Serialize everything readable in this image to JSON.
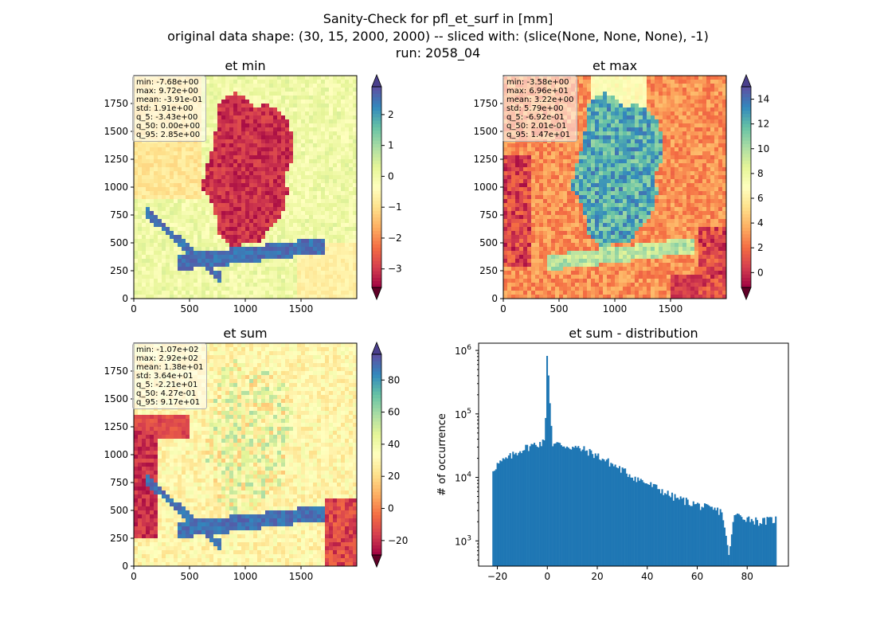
{
  "figure": {
    "title_lines": [
      "Sanity-Check for pfl_et_surf in [mm]",
      "original data shape: (30, 15, 2000, 2000) -- sliced with: (slice(None, None, None), -1)",
      "run: 2058_04"
    ]
  },
  "colormap": {
    "name": "Spectral",
    "stops": [
      "#9e0142",
      "#d53e4f",
      "#f46d43",
      "#fdae61",
      "#fee08b",
      "#ffffbf",
      "#e6f598",
      "#abdda4",
      "#66c2a5",
      "#3288bd",
      "#5e4fa2"
    ],
    "under": "#5f0027",
    "over": "#4a3f8c"
  },
  "chart_data": [
    {
      "type": "heatmap",
      "title": "et min",
      "xlim": [
        0,
        2000
      ],
      "ylim": [
        0,
        2000
      ],
      "xticks": [
        "0",
        "500",
        "1000",
        "1500"
      ],
      "yticks": [
        "0",
        "250",
        "500",
        "750",
        "1000",
        "1250",
        "1500",
        "1750"
      ],
      "colorbar": {
        "range": [
          -3.6,
          2.9
        ],
        "ticks": [
          "−3",
          "−2",
          "−1",
          "0",
          "1",
          "2"
        ],
        "ticks_num": [
          -3,
          -2,
          -1,
          0,
          1,
          2
        ],
        "extend": "both"
      },
      "stats": [
        "min: -7.68e+00",
        "max: 9.72e+00",
        "mean: -3.91e-01",
        "std: 1.91e+00",
        "q_5: -3.43e+00",
        "q_50: 0.00e+00",
        "q_95: 2.85e+00"
      ]
    },
    {
      "type": "heatmap",
      "title": "et max",
      "xlim": [
        0,
        2000
      ],
      "ylim": [
        0,
        2000
      ],
      "xticks": [
        "0",
        "500",
        "1000",
        "1500"
      ],
      "yticks": [
        "0",
        "250",
        "500",
        "750",
        "1000",
        "1250",
        "1500",
        "1750"
      ],
      "colorbar": {
        "range": [
          -1.2,
          15.0
        ],
        "ticks": [
          "0",
          "2",
          "4",
          "6",
          "8",
          "10",
          "12",
          "14"
        ],
        "ticks_num": [
          0,
          2,
          4,
          6,
          8,
          10,
          12,
          14
        ],
        "extend": "both"
      },
      "stats": [
        "min: -3.58e+00",
        "max: 6.96e+01",
        "mean: 3.22e+00",
        "std: 5.79e+00",
        "q_5: -6.92e-01",
        "q_50: 2.01e-01",
        "q_95: 1.47e+01"
      ]
    },
    {
      "type": "heatmap",
      "title": "et sum",
      "xlim": [
        0,
        2000
      ],
      "ylim": [
        0,
        2000
      ],
      "xticks": [
        "0",
        "500",
        "1000",
        "1500"
      ],
      "yticks": [
        "0",
        "250",
        "500",
        "750",
        "1000",
        "1250",
        "1500",
        "1750"
      ],
      "colorbar": {
        "range": [
          -29,
          96
        ],
        "ticks": [
          "−20",
          "0",
          "20",
          "40",
          "60",
          "80"
        ],
        "ticks_num": [
          -20,
          0,
          20,
          40,
          60,
          80
        ],
        "extend": "both"
      },
      "stats": [
        "min: -1.07e+02",
        "max: 2.92e+02",
        "mean: 1.38e+01",
        "std: 3.64e+01",
        "q_5: -2.21e+01",
        "q_50: 4.27e-01",
        "q_95: 9.17e+01"
      ]
    },
    {
      "type": "bar",
      "title": "et sum - distribution",
      "ylabel": "# of occurrence",
      "yscale": "log",
      "xlim": [
        -27.5,
        96.5
      ],
      "ylim": [
        400,
        1300000
      ],
      "xticks": [
        "−20",
        "0",
        "20",
        "40",
        "60",
        "80"
      ],
      "xticks_num": [
        -20,
        0,
        20,
        40,
        60,
        80
      ],
      "yticks": [
        {
          "base": "10",
          "exp": "3",
          "value": 1000
        },
        {
          "base": "10",
          "exp": "4",
          "value": 10000
        },
        {
          "base": "10",
          "exp": "5",
          "value": 100000
        },
        {
          "base": "10",
          "exp": "6",
          "value": 1000000
        }
      ],
      "color": "#1f77b4",
      "anchor_points": [
        [
          -22.0,
          13000
        ],
        [
          -20,
          16000
        ],
        [
          -15,
          21000
        ],
        [
          -10,
          28000
        ],
        [
          -5,
          33000
        ],
        [
          -1,
          36000
        ],
        [
          0,
          820000
        ],
        [
          2,
          34000
        ],
        [
          5,
          33000
        ],
        [
          10,
          30000
        ],
        [
          15,
          27000
        ],
        [
          20,
          22000
        ],
        [
          25,
          17000
        ],
        [
          30,
          13000
        ],
        [
          35,
          10000
        ],
        [
          40,
          8000
        ],
        [
          45,
          6500
        ],
        [
          50,
          5000
        ],
        [
          55,
          4300
        ],
        [
          60,
          3700
        ],
        [
          65,
          3200
        ],
        [
          70,
          2900
        ],
        [
          72.5,
          600
        ],
        [
          75,
          2600
        ],
        [
          80,
          2300
        ],
        [
          85,
          2000
        ],
        [
          91.7,
          2200
        ]
      ]
    }
  ]
}
